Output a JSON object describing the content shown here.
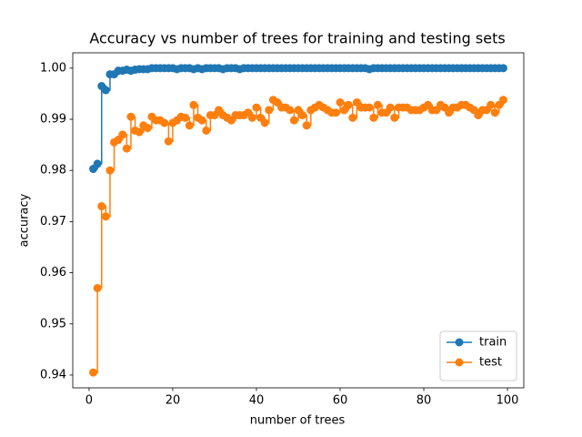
{
  "chart_data": {
    "type": "line",
    "drawstyle": "steps-post",
    "marker": "circle",
    "title": "Accuracy vs number of trees for training and testing sets",
    "x_label": "number of trees",
    "y_label": "accuracy",
    "x": [
      1,
      2,
      3,
      4,
      5,
      6,
      7,
      8,
      9,
      10,
      11,
      12,
      13,
      14,
      15,
      16,
      17,
      18,
      19,
      20,
      21,
      22,
      23,
      24,
      25,
      26,
      27,
      28,
      29,
      30,
      31,
      32,
      33,
      34,
      35,
      36,
      37,
      38,
      39,
      40,
      41,
      42,
      43,
      44,
      45,
      46,
      47,
      48,
      49,
      50,
      51,
      52,
      53,
      54,
      55,
      56,
      57,
      58,
      59,
      60,
      61,
      62,
      63,
      64,
      65,
      66,
      67,
      68,
      69,
      70,
      71,
      72,
      73,
      74,
      75,
      76,
      77,
      78,
      79,
      80,
      81,
      82,
      83,
      84,
      85,
      86,
      87,
      88,
      89,
      90,
      91,
      92,
      93,
      94,
      95,
      96,
      97,
      98,
      99
    ],
    "series": [
      {
        "name": "train",
        "color": "#1f77b4",
        "values": [
          0.9803,
          0.9813,
          0.9965,
          0.9957,
          0.9988,
          0.9988,
          0.9995,
          0.9995,
          0.9997,
          0.9995,
          0.9997,
          0.9998,
          0.9998,
          0.9998,
          1,
          1,
          1,
          1,
          1,
          1,
          0.9998,
          1,
          1,
          1,
          0.9998,
          1,
          0.9998,
          1,
          1,
          1,
          1,
          0.9998,
          1,
          1,
          1,
          0.9998,
          1,
          1,
          1,
          1,
          1,
          1,
          1,
          1,
          1,
          1,
          1,
          1,
          1,
          1,
          1,
          1,
          1,
          1,
          1,
          1,
          1,
          1,
          1,
          1,
          1,
          1,
          1,
          1,
          1,
          1,
          0.9998,
          1,
          1,
          1,
          1,
          1,
          1,
          1,
          1,
          1,
          1,
          1,
          1,
          1,
          1,
          1,
          1,
          1,
          1,
          1,
          1,
          1,
          1,
          1,
          1,
          1,
          1,
          1,
          1,
          1,
          1,
          1,
          1
        ]
      },
      {
        "name": "test",
        "color": "#ff7f0e",
        "values": [
          0.9405,
          0.957,
          0.973,
          0.971,
          0.98,
          0.9855,
          0.986,
          0.987,
          0.9843,
          0.9905,
          0.9878,
          0.9875,
          0.9888,
          0.9883,
          0.9905,
          0.9898,
          0.9898,
          0.9893,
          0.9857,
          0.9893,
          0.9898,
          0.9905,
          0.9903,
          0.9888,
          0.9928,
          0.9903,
          0.9898,
          0.9878,
          0.9908,
          0.9908,
          0.9918,
          0.9908,
          0.9903,
          0.9898,
          0.9908,
          0.9908,
          0.9908,
          0.9913,
          0.9903,
          0.9923,
          0.9903,
          0.9893,
          0.9918,
          0.9938,
          0.9933,
          0.9923,
          0.9923,
          0.9918,
          0.9898,
          0.9918,
          0.9908,
          0.9888,
          0.9918,
          0.9923,
          0.9928,
          0.9923,
          0.9918,
          0.9913,
          0.9913,
          0.9933,
          0.9918,
          0.9928,
          0.9903,
          0.9933,
          0.9923,
          0.9923,
          0.9923,
          0.9903,
          0.9928,
          0.9913,
          0.9913,
          0.9923,
          0.9903,
          0.9923,
          0.9923,
          0.9923,
          0.9918,
          0.9918,
          0.9918,
          0.9923,
          0.9928,
          0.9918,
          0.9918,
          0.9928,
          0.9923,
          0.9913,
          0.9923,
          0.9923,
          0.9928,
          0.9928,
          0.9923,
          0.9918,
          0.9908,
          0.9918,
          0.9918,
          0.9928,
          0.9913,
          0.9928,
          0.9938
        ]
      }
    ],
    "xlim": [
      -3.9,
      103.9
    ],
    "xticks": [
      0,
      20,
      40,
      60,
      80,
      100
    ],
    "ylim": [
      0.9375,
      1.003
    ],
    "yticks": [
      0.94,
      0.95,
      0.96,
      0.97,
      0.98,
      0.99,
      {
        "value": 1,
        "label": "1.00"
      }
    ],
    "legend": "lower right",
    "grid": false
  }
}
